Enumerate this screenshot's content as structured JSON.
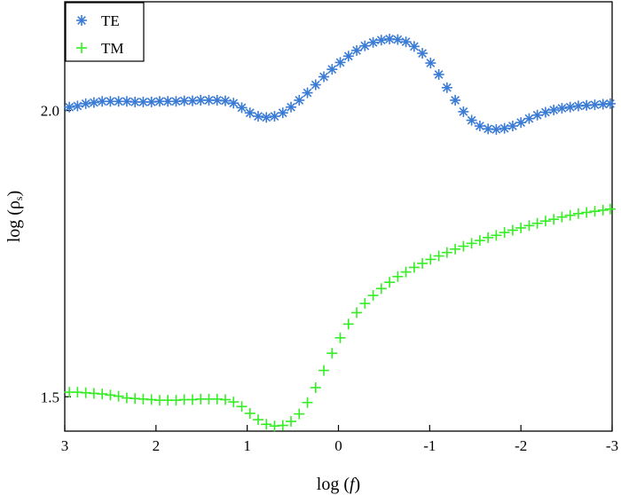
{
  "chart_data": {
    "type": "scatter",
    "title": "",
    "xlabel": "log (f)",
    "xlabel_prefix": "log (",
    "xlabel_var": "f",
    "xlabel_suffix": ")",
    "ylabel": "log (ρs)",
    "ylabel_prefix": "log (ρ",
    "ylabel_sub": "s",
    "ylabel_suffix": ")",
    "xlim": [
      3,
      -3
    ],
    "ylim": [
      1.44,
      2.19
    ],
    "xticks": [
      3,
      2,
      1,
      0,
      -1,
      -2,
      -3
    ],
    "xtick_labels": [
      "3",
      "2",
      "1",
      "0",
      "-1",
      "-2",
      "-3"
    ],
    "yticks": [
      1.5,
      2.0
    ],
    "ytick_labels": [
      "1.5",
      "2.0"
    ],
    "grid": false,
    "legend_position": "top-left",
    "series": [
      {
        "name": "TE",
        "marker": "asterisk",
        "color": "#3a7bd5",
        "x": [
          2.95,
          2.86,
          2.77,
          2.68,
          2.59,
          2.5,
          2.41,
          2.32,
          2.23,
          2.14,
          2.05,
          1.96,
          1.87,
          1.78,
          1.69,
          1.6,
          1.51,
          1.42,
          1.33,
          1.24,
          1.15,
          1.06,
          0.97,
          0.88,
          0.79,
          0.7,
          0.61,
          0.52,
          0.43,
          0.34,
          0.25,
          0.16,
          0.07,
          -0.02,
          -0.11,
          -0.2,
          -0.29,
          -0.38,
          -0.47,
          -0.56,
          -0.65,
          -0.74,
          -0.83,
          -0.92,
          -1.01,
          -1.1,
          -1.19,
          -1.28,
          -1.37,
          -1.46,
          -1.55,
          -1.64,
          -1.73,
          -1.82,
          -1.91,
          -2.0,
          -2.09,
          -2.18,
          -2.27,
          -2.36,
          -2.45,
          -2.54,
          -2.63,
          -2.72,
          -2.81,
          -2.9,
          -2.98
        ],
        "y": [
          2.006,
          2.008,
          2.012,
          2.014,
          2.016,
          2.016,
          2.016,
          2.016,
          2.015,
          2.015,
          2.015,
          2.016,
          2.016,
          2.016,
          2.017,
          2.017,
          2.018,
          2.018,
          2.018,
          2.017,
          2.013,
          2.005,
          1.996,
          1.99,
          1.988,
          1.99,
          1.996,
          2.006,
          2.018,
          2.031,
          2.045,
          2.059,
          2.072,
          2.084,
          2.095,
          2.105,
          2.113,
          2.119,
          2.123,
          2.125,
          2.124,
          2.12,
          2.112,
          2.1,
          2.083,
          2.063,
          2.04,
          2.018,
          1.998,
          1.983,
          1.973,
          1.968,
          1.967,
          1.969,
          1.973,
          1.979,
          1.986,
          1.992,
          1.997,
          2.001,
          2.004,
          2.006,
          2.008,
          2.009,
          2.01,
          2.011,
          2.012
        ]
      },
      {
        "name": "TM",
        "marker": "plus",
        "color": "#33ee22",
        "x": [
          2.95,
          2.86,
          2.77,
          2.68,
          2.59,
          2.5,
          2.41,
          2.32,
          2.23,
          2.14,
          2.05,
          1.96,
          1.87,
          1.78,
          1.69,
          1.6,
          1.51,
          1.42,
          1.33,
          1.24,
          1.15,
          1.06,
          0.97,
          0.88,
          0.79,
          0.7,
          0.61,
          0.52,
          0.43,
          0.34,
          0.25,
          0.16,
          0.07,
          -0.02,
          -0.11,
          -0.2,
          -0.29,
          -0.38,
          -0.47,
          -0.56,
          -0.65,
          -0.74,
          -0.83,
          -0.92,
          -1.01,
          -1.1,
          -1.19,
          -1.28,
          -1.37,
          -1.46,
          -1.55,
          -1.64,
          -1.73,
          -1.82,
          -1.91,
          -2.0,
          -2.09,
          -2.18,
          -2.27,
          -2.36,
          -2.45,
          -2.54,
          -2.63,
          -2.72,
          -2.81,
          -2.9,
          -2.98
        ],
        "y": [
          1.508,
          1.508,
          1.507,
          1.506,
          1.505,
          1.503,
          1.501,
          1.498,
          1.497,
          1.496,
          1.495,
          1.494,
          1.494,
          1.494,
          1.495,
          1.495,
          1.496,
          1.496,
          1.496,
          1.495,
          1.491,
          1.483,
          1.471,
          1.46,
          1.452,
          1.449,
          1.45,
          1.457,
          1.47,
          1.49,
          1.516,
          1.546,
          1.576,
          1.603,
          1.627,
          1.647,
          1.663,
          1.677,
          1.689,
          1.7,
          1.71,
          1.718,
          1.726,
          1.733,
          1.74,
          1.746,
          1.752,
          1.758,
          1.763,
          1.768,
          1.773,
          1.778,
          1.782,
          1.787,
          1.791,
          1.795,
          1.799,
          1.803,
          1.807,
          1.81,
          1.814,
          1.817,
          1.82,
          1.822,
          1.824,
          1.826,
          1.828
        ]
      }
    ]
  }
}
